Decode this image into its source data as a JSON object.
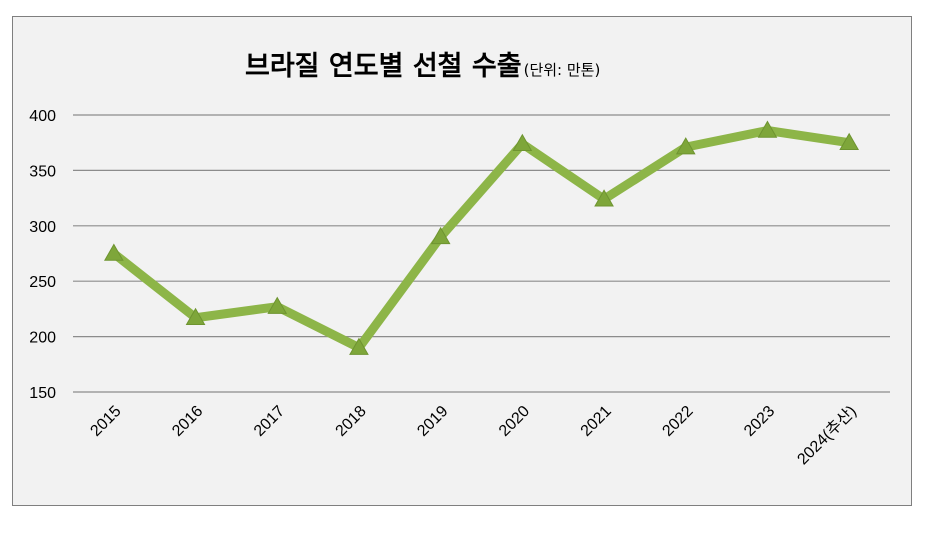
{
  "chart_data": {
    "type": "line",
    "title": "브라질 연도별 선철 수출",
    "title_unit": "(단위: 만톤)",
    "categories": [
      "2015",
      "2016",
      "2017",
      "2018",
      "2019",
      "2020",
      "2021",
      "2022",
      "2023",
      "2024(추산)"
    ],
    "series": [
      {
        "values": [
          275,
          217,
          227,
          190,
          290,
          374,
          324,
          371,
          386,
          375
        ]
      }
    ],
    "yticks": [
      150,
      200,
      250,
      300,
      350,
      400
    ],
    "ylim": [
      150,
      400
    ],
    "grid": true,
    "line_color": "#8db548",
    "marker_color": "#7ea63a",
    "marker": "triangle"
  }
}
